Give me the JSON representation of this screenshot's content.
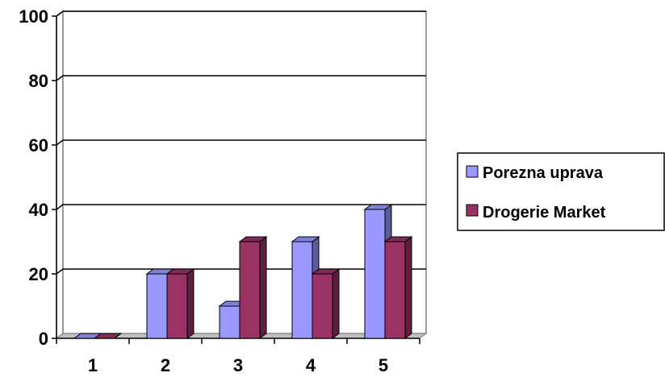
{
  "chart_data": {
    "type": "bar",
    "categories": [
      "1",
      "2",
      "3",
      "4",
      "5"
    ],
    "series": [
      {
        "name": "Porezna uprava",
        "values": [
          0,
          20,
          10,
          30,
          40
        ],
        "color": "#9999FF"
      },
      {
        "name": "Drogerie Market",
        "values": [
          0,
          20,
          30,
          20,
          30
        ],
        "color": "#993366"
      }
    ],
    "yticks": [
      "0",
      "20",
      "40",
      "60",
      "80",
      "100"
    ],
    "ylim": [
      0,
      100
    ],
    "grid": true,
    "legend": "right",
    "style": "3d-clustered-column"
  }
}
